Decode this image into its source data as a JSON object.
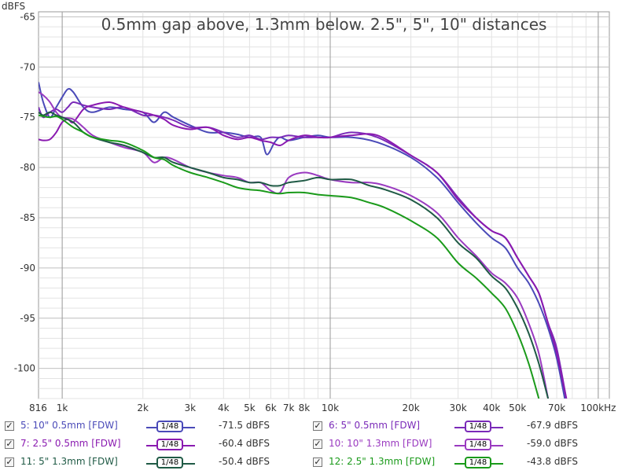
{
  "chart_data": {
    "type": "line",
    "title": "0.5mm gap above, 1.3mm below. 2.5\", 5\", 10\" distances",
    "ylabel": "dBFS",
    "xlabel": "",
    "x_scale": "log",
    "xlim": [
      816,
      110000
    ],
    "ylim": [
      -103,
      -64.5
    ],
    "grid": true,
    "y_ticks": [
      -65,
      -70,
      -75,
      -80,
      -85,
      -90,
      -95,
      -100
    ],
    "y_tick_labels": [
      "-65",
      "-70",
      "-75",
      "-80",
      "-85",
      "-90",
      "-95",
      "-100"
    ],
    "x_ticks": [
      816,
      1000,
      2000,
      3000,
      4000,
      5000,
      6000,
      7000,
      8000,
      10000,
      20000,
      30000,
      40000,
      50000,
      70000,
      100000
    ],
    "x_tick_labels": [
      "816",
      "1k",
      "2k",
      "3k",
      "4k",
      "5k",
      "6k",
      "7k",
      "8k",
      "10k",
      "20k",
      "30k",
      "40k",
      "50k",
      "70k",
      "100kHz"
    ],
    "series": [
      {
        "name": "5: 10\" 0.5mm [FDW]",
        "color": "#4a4ab8",
        "x": [
          816,
          850,
          900,
          950,
          1000,
          1050,
          1100,
          1200,
          1300,
          1500,
          1700,
          2000,
          2200,
          2400,
          2600,
          3000,
          3500,
          4000,
          4500,
          5000,
          5500,
          5800,
          6200,
          6500,
          7000,
          8000,
          9000,
          10000,
          12000,
          15000,
          20000,
          25000,
          30000,
          35000,
          40000,
          45000,
          50000,
          55000,
          60000,
          65000,
          70000,
          75000
        ],
        "y": [
          -71.5,
          -73.5,
          -75.0,
          -74.0,
          -73.0,
          -72.2,
          -72.5,
          -74.0,
          -74.5,
          -74.0,
          -74.2,
          -74.5,
          -75.5,
          -74.5,
          -75.0,
          -75.8,
          -76.5,
          -76.5,
          -76.7,
          -77.0,
          -77.0,
          -78.7,
          -77.5,
          -77.0,
          -77.3,
          -77.0,
          -76.8,
          -77.0,
          -77.0,
          -77.5,
          -79.0,
          -81.0,
          -83.5,
          -85.5,
          -87.0,
          -88.0,
          -90.0,
          -91.5,
          -93.5,
          -96.0,
          -99.0,
          -103.0
        ]
      },
      {
        "name": "6: 5\" 0.5mm [FDW]",
        "color": "#7a2ab8",
        "x": [
          816,
          850,
          900,
          950,
          1000,
          1050,
          1100,
          1200,
          1300,
          1500,
          1700,
          2000,
          2200,
          2400,
          2600,
          3000,
          3500,
          4000,
          4500,
          5000,
          5500,
          6000,
          6500,
          7000,
          8000,
          9000,
          10000,
          12000,
          15000,
          20000,
          25000,
          30000,
          35000,
          40000,
          45000,
          50000,
          55000,
          60000,
          65000,
          70000,
          76000
        ],
        "y": [
          -74.0,
          -75.0,
          -74.5,
          -74.2,
          -74.5,
          -74.0,
          -73.5,
          -73.8,
          -74.0,
          -74.2,
          -74.0,
          -74.8,
          -74.8,
          -75.0,
          -75.3,
          -76.0,
          -76.0,
          -76.5,
          -77.0,
          -76.8,
          -77.2,
          -77.0,
          -77.0,
          -76.8,
          -77.0,
          -77.0,
          -77.0,
          -76.5,
          -77.0,
          -78.8,
          -80.5,
          -83.0,
          -85.0,
          -86.3,
          -87.0,
          -89.0,
          -90.8,
          -92.5,
          -95.5,
          -98.0,
          -103.0
        ]
      },
      {
        "name": "7: 2.5\" 0.5mm [FDW]",
        "color": "#8a1ab0",
        "x": [
          816,
          850,
          900,
          950,
          1000,
          1050,
          1100,
          1200,
          1300,
          1500,
          1700,
          2000,
          2200,
          2400,
          2600,
          3000,
          3500,
          4000,
          4500,
          5000,
          5500,
          6000,
          6500,
          7000,
          8000,
          9000,
          10000,
          12000,
          15000,
          20000,
          25000,
          30000,
          35000,
          40000,
          45000,
          50000,
          55000,
          60000,
          65000,
          70000,
          76000
        ],
        "y": [
          -77.2,
          -77.3,
          -77.2,
          -76.5,
          -75.5,
          -75.2,
          -75.5,
          -74.2,
          -73.8,
          -73.5,
          -74.0,
          -74.5,
          -74.8,
          -75.2,
          -75.8,
          -76.2,
          -76.0,
          -76.8,
          -77.2,
          -77.0,
          -77.3,
          -77.5,
          -77.8,
          -77.3,
          -76.8,
          -77.0,
          -77.0,
          -76.8,
          -76.8,
          -78.8,
          -80.5,
          -83.2,
          -85.0,
          -86.3,
          -87.0,
          -89.0,
          -90.8,
          -92.5,
          -95.5,
          -98.5,
          -103.0
        ]
      },
      {
        "name": "10: 10\" 1.3mm [FDW]",
        "color": "#9a3ac0",
        "x": [
          816,
          850,
          900,
          950,
          1000,
          1100,
          1200,
          1300,
          1500,
          1700,
          2000,
          2200,
          2400,
          2600,
          3000,
          3500,
          4000,
          4500,
          5000,
          5500,
          6000,
          6500,
          7000,
          8000,
          9000,
          10000,
          12000,
          14000,
          16000,
          20000,
          25000,
          30000,
          35000,
          40000,
          45000,
          50000,
          55000,
          60000,
          65000
        ],
        "y": [
          -72.5,
          -72.8,
          -73.5,
          -74.5,
          -75.0,
          -75.2,
          -76.0,
          -76.8,
          -77.5,
          -78.0,
          -78.5,
          -79.5,
          -79.0,
          -79.2,
          -80.0,
          -80.5,
          -80.8,
          -81.0,
          -81.5,
          -81.5,
          -82.3,
          -82.5,
          -81.0,
          -80.5,
          -80.8,
          -81.2,
          -81.5,
          -81.5,
          -81.8,
          -82.8,
          -84.5,
          -87.0,
          -88.8,
          -90.5,
          -91.5,
          -93.0,
          -95.5,
          -98.5,
          -103.0
        ]
      },
      {
        "name": "11: 5\" 1.3mm [FDW]",
        "color": "#1f5a45",
        "x": [
          816,
          850,
          900,
          950,
          1000,
          1100,
          1200,
          1300,
          1500,
          1700,
          2000,
          2200,
          2400,
          2600,
          3000,
          3500,
          4000,
          4500,
          5000,
          5500,
          6000,
          6500,
          7000,
          8000,
          9000,
          10000,
          12000,
          14000,
          16000,
          20000,
          25000,
          30000,
          35000,
          40000,
          45000,
          50000,
          55000,
          60000,
          65000
        ],
        "y": [
          -74.5,
          -74.8,
          -74.5,
          -74.8,
          -75.0,
          -75.5,
          -76.5,
          -77.0,
          -77.5,
          -77.8,
          -78.5,
          -79.0,
          -79.0,
          -79.5,
          -80.0,
          -80.5,
          -81.0,
          -81.2,
          -81.5,
          -81.5,
          -81.8,
          -81.8,
          -81.5,
          -81.3,
          -81.0,
          -81.2,
          -81.2,
          -81.8,
          -82.2,
          -83.2,
          -85.0,
          -87.5,
          -89.0,
          -90.8,
          -92.0,
          -94.0,
          -96.5,
          -99.5,
          -103.0
        ]
      },
      {
        "name": "12: 2.5\" 1.3mm [FDW]",
        "color": "#1a9a1a",
        "x": [
          816,
          850,
          900,
          950,
          1000,
          1100,
          1200,
          1300,
          1500,
          1700,
          2000,
          2200,
          2400,
          2600,
          3000,
          3500,
          4000,
          4500,
          5000,
          5500,
          6000,
          6500,
          7000,
          8000,
          9000,
          10000,
          12000,
          14000,
          16000,
          20000,
          25000,
          30000,
          35000,
          40000,
          45000,
          50000,
          55000,
          60000
        ],
        "y": [
          -74.8,
          -74.9,
          -75.0,
          -74.9,
          -75.2,
          -76.0,
          -76.5,
          -77.0,
          -77.3,
          -77.5,
          -78.3,
          -79.0,
          -79.2,
          -79.8,
          -80.5,
          -81.0,
          -81.5,
          -82.0,
          -82.2,
          -82.3,
          -82.5,
          -82.6,
          -82.5,
          -82.5,
          -82.7,
          -82.8,
          -83.0,
          -83.5,
          -84.0,
          -85.3,
          -87.0,
          -89.5,
          -91.0,
          -92.5,
          -94.0,
          -96.5,
          -99.5,
          -103.0
        ]
      }
    ]
  },
  "legend": [
    {
      "label": "5: 10\" 0.5mm [FDW]",
      "smoothing": "1/48",
      "value": "-71.5 dBFS",
      "color": "#4a4ab8",
      "checked": "✓"
    },
    {
      "label": "6: 5\" 0.5mm [FDW]",
      "smoothing": "1/48",
      "value": "-67.9 dBFS",
      "color": "#7a2ab8",
      "checked": "✓"
    },
    {
      "label": "7: 2.5\" 0.5mm [FDW]",
      "smoothing": "1/48",
      "value": "-60.4 dBFS",
      "color": "#8a1ab0",
      "checked": "✓"
    },
    {
      "label": "10: 10\" 1.3mm [FDW]",
      "smoothing": "1/48",
      "value": "-59.0 dBFS",
      "color": "#9a3ac0",
      "checked": "✓"
    },
    {
      "label": "11: 5\" 1.3mm [FDW]",
      "smoothing": "1/48",
      "value": "-50.4 dBFS",
      "color": "#1f5a45",
      "checked": "✓"
    },
    {
      "label": "12: 2.5\" 1.3mm [FDW]",
      "smoothing": "1/48",
      "value": "-43.8 dBFS",
      "color": "#1a9a1a",
      "checked": "✓"
    }
  ]
}
